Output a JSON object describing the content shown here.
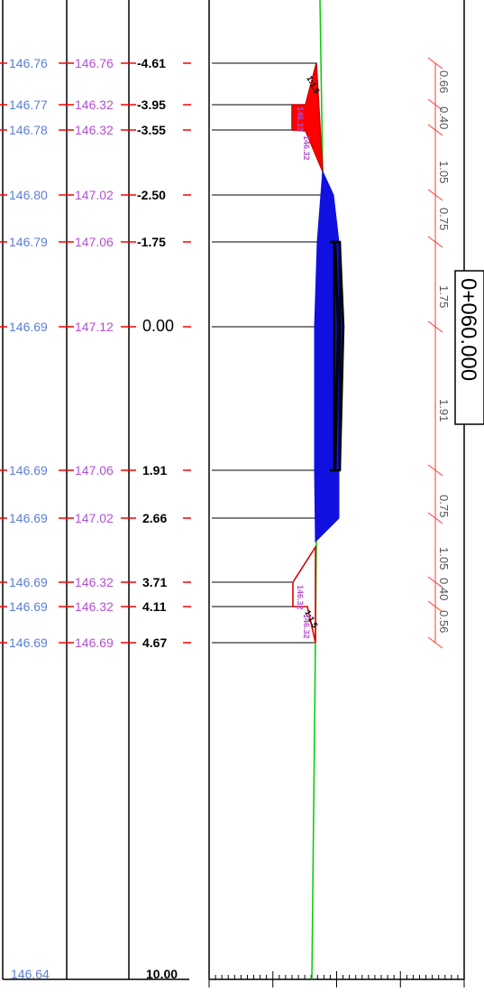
{
  "station": {
    "label": "0+060.000"
  },
  "colors": {
    "existing": "#5b7fd6",
    "design": "#b34fd0",
    "cut_fill": "#ff0000",
    "pavement_fill": "#1010e0",
    "ground": "#00cc00",
    "dimension": "#ff3b30"
  },
  "rows": [
    {
      "existing": "146.76",
      "design": "146.76",
      "offset": "-4.61"
    },
    {
      "existing": "146.77",
      "design": "146.32",
      "offset": "-3.95"
    },
    {
      "existing": "146.78",
      "design": "146.32",
      "offset": "-3.55"
    },
    {
      "existing": "146.80",
      "design": "147.02",
      "offset": "-2.50"
    },
    {
      "existing": "146.79",
      "design": "147.06",
      "offset": "-1.75"
    },
    {
      "existing": "146.69",
      "design": "147.12",
      "offset": "0.00"
    },
    {
      "existing": "146.69",
      "design": "147.06",
      "offset": "1.91"
    },
    {
      "existing": "146.69",
      "design": "147.02",
      "offset": "2.66"
    },
    {
      "existing": "146.69",
      "design": "146.32",
      "offset": "3.71"
    },
    {
      "existing": "146.69",
      "design": "146.32",
      "offset": "4.11"
    },
    {
      "existing": "146.69",
      "design": "146.69",
      "offset": "4.67"
    }
  ],
  "bottom_row": {
    "existing": "146.64",
    "offset": "10.00"
  },
  "dimensions": [
    "0.66",
    "0.40",
    "1.05",
    "0.75",
    "1.75",
    "1.91",
    "0.75",
    "1.05",
    "0.40",
    "0.56"
  ],
  "slope_labels": {
    "left": "1:1.5",
    "right": "1:1.5"
  },
  "ditch_labels": {
    "left_a": "146.32",
    "left_b": "146.32",
    "right_a": "146.32",
    "right_b": "146.32"
  }
}
